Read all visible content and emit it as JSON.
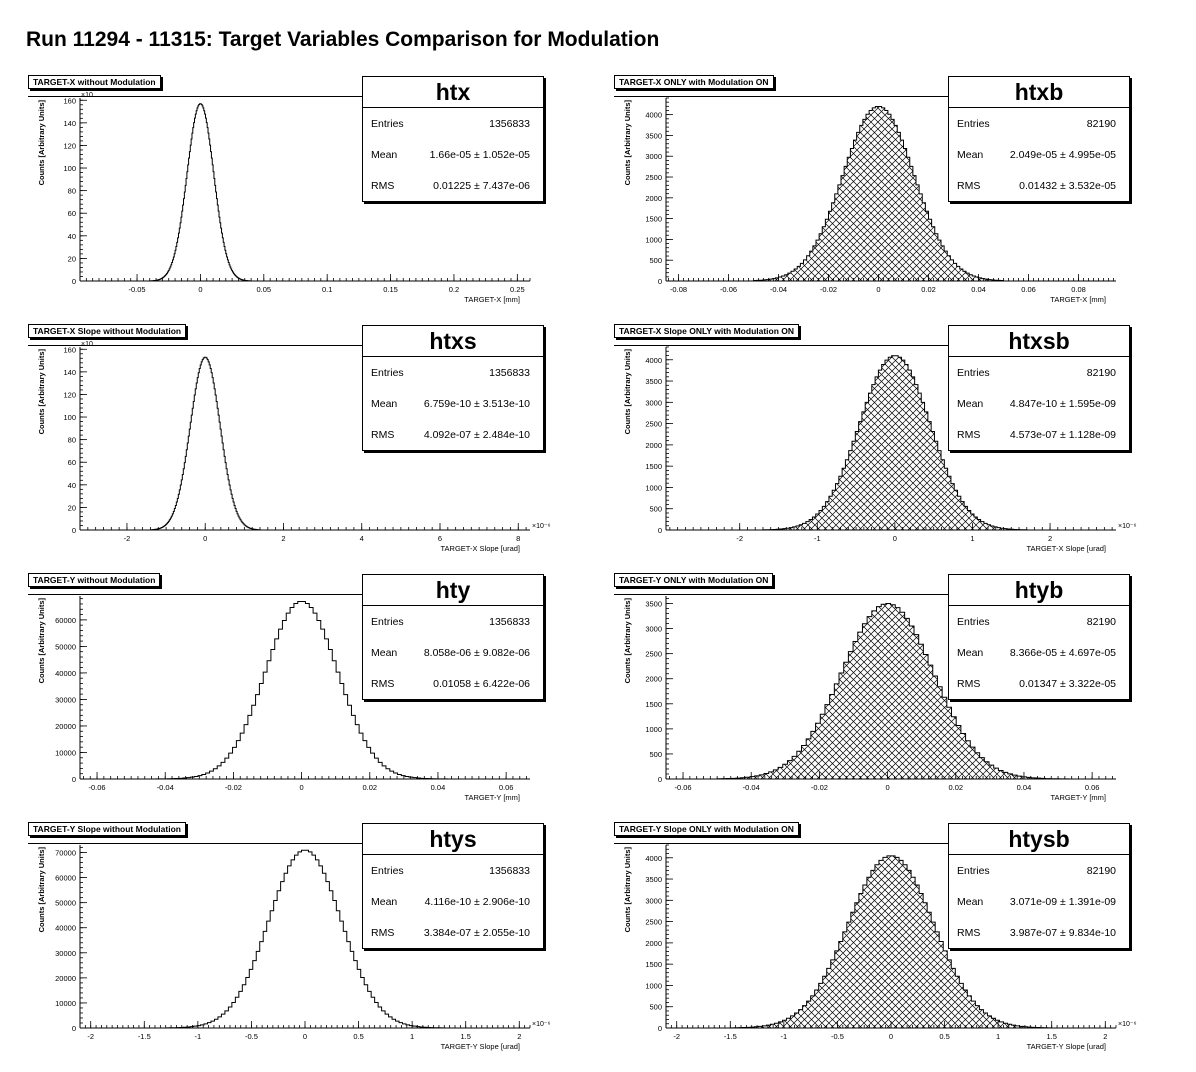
{
  "page": {
    "title": "Run 11294 - 11315: Target Variables Comparison for Modulation"
  },
  "stats_labels": {
    "entries": "Entries",
    "mean": "Mean",
    "rms": "RMS"
  },
  "colors": {
    "axis": "#000000",
    "histogram_line": "#000000",
    "hatch_fill": "#000000",
    "background": "#ffffff"
  },
  "chart_data": [
    {
      "type": "histogram",
      "name": "htx",
      "title": "TARGET-X without Modulation",
      "xlabel": "TARGET-X [mm]",
      "ylabel": "Counts [Arbitrary Units]",
      "xlim": [
        -0.095,
        0.26
      ],
      "ylim": [
        0,
        162000
      ],
      "y_exponent_label": "×10",
      "x_ticks": [
        -0.05,
        0,
        0.05,
        0.1,
        0.15,
        0.2,
        0.25
      ],
      "x_tick_labels": [
        "-0.05",
        "0",
        "0.05",
        "0.1",
        "0.15",
        "0.2",
        "0.25"
      ],
      "y_ticks": [
        0,
        20000,
        40000,
        60000,
        80000,
        100000,
        120000,
        140000,
        160000
      ],
      "y_tick_labels": [
        "0",
        "20",
        "40",
        "60",
        "80",
        "100",
        "120",
        "140",
        "160"
      ],
      "x_multiplier_label": "",
      "dist": {
        "mean": 0,
        "sigma": 0.0105,
        "peak": 157000,
        "bins": 120,
        "range": [
          -0.04,
          0.04
        ]
      },
      "filled": false,
      "stats": {
        "entries": "1356833",
        "mean": "1.66e-05 ± 1.052e-05",
        "rms": "0.01225 ± 7.437e-06"
      }
    },
    {
      "type": "histogram",
      "name": "htxb",
      "title": "TARGET-X ONLY with Modulation ON",
      "xlabel": "TARGET-X [mm]",
      "ylabel": "Counts [Arbitrary Units]",
      "xlim": [
        -0.085,
        0.095
      ],
      "ylim": [
        0,
        4400
      ],
      "y_exponent_label": "",
      "x_ticks": [
        -0.08,
        -0.06,
        -0.04,
        -0.02,
        0,
        0.02,
        0.04,
        0.06,
        0.08
      ],
      "x_tick_labels": [
        "-0.08",
        "-0.06",
        "-0.04",
        "-0.02",
        "0",
        "0.02",
        "0.04",
        "0.06",
        "0.08"
      ],
      "y_ticks": [
        0,
        500,
        1000,
        1500,
        2000,
        2500,
        3000,
        3500,
        4000
      ],
      "y_tick_labels": [
        "0",
        "500",
        "1000",
        "1500",
        "2000",
        "2500",
        "3000",
        "3500",
        "4000"
      ],
      "x_multiplier_label": "",
      "dist": {
        "mean": 0,
        "sigma": 0.0143,
        "peak": 4200,
        "bins": 80,
        "range": [
          -0.05,
          0.05
        ]
      },
      "filled": true,
      "stats": {
        "entries": "82190",
        "mean": "2.049e-05 ± 4.995e-05",
        "rms": "0.01432 ± 3.532e-05"
      }
    },
    {
      "type": "histogram",
      "name": "htxs",
      "title": "TARGET-X Slope without Modulation",
      "xlabel": "TARGET-X Slope [urad]",
      "ylabel": "Counts [Arbitrary Units]",
      "xlim": [
        -3.2,
        8.3
      ],
      "ylim": [
        0,
        162000
      ],
      "y_exponent_label": "×10",
      "x_ticks": [
        -2,
        0,
        2,
        4,
        6,
        8
      ],
      "x_tick_labels": [
        "-2",
        "0",
        "2",
        "4",
        "6",
        "8"
      ],
      "y_ticks": [
        0,
        20000,
        40000,
        60000,
        80000,
        100000,
        120000,
        140000,
        160000
      ],
      "y_tick_labels": [
        "0",
        "20",
        "40",
        "60",
        "80",
        "100",
        "120",
        "140",
        "160"
      ],
      "x_multiplier_label": "×10⁻⁶",
      "dist": {
        "mean": 0,
        "sigma": 0.38,
        "peak": 153000,
        "bins": 110,
        "range": [
          -1.4,
          1.4
        ]
      },
      "filled": false,
      "stats": {
        "entries": "1356833",
        "mean": "6.759e-10 ± 3.513e-10",
        "rms": "4.092e-07 ± 2.484e-10"
      }
    },
    {
      "type": "histogram",
      "name": "htxsb",
      "title": "TARGET-X Slope ONLY with Modulation ON",
      "xlabel": "TARGET-X Slope [urad]",
      "ylabel": "Counts [Arbitrary Units]",
      "xlim": [
        -2.95,
        2.85
      ],
      "ylim": [
        0,
        4300
      ],
      "y_exponent_label": "",
      "x_ticks": [
        -2,
        -1,
        0,
        1,
        2
      ],
      "x_tick_labels": [
        "-2",
        "-1",
        "0",
        "1",
        "2"
      ],
      "y_ticks": [
        0,
        500,
        1000,
        1500,
        2000,
        2500,
        3000,
        3500,
        4000
      ],
      "y_tick_labels": [
        "0",
        "500",
        "1000",
        "1500",
        "2000",
        "2500",
        "3000",
        "3500",
        "4000"
      ],
      "x_multiplier_label": "×10⁻⁶",
      "dist": {
        "mean": 0,
        "sigma": 0.457,
        "peak": 4100,
        "bins": 80,
        "range": [
          -1.7,
          1.7
        ]
      },
      "filled": true,
      "stats": {
        "entries": "82190",
        "mean": "4.847e-10 ± 1.595e-09",
        "rms": "4.573e-07 ± 1.128e-09"
      }
    },
    {
      "type": "histogram",
      "name": "hty",
      "title": "TARGET-Y without Modulation",
      "xlabel": "TARGET-Y [mm]",
      "ylabel": "Counts [Arbitrary Units]",
      "xlim": [
        -0.065,
        0.067
      ],
      "ylim": [
        0,
        69000
      ],
      "y_exponent_label": "",
      "x_ticks": [
        -0.06,
        -0.04,
        -0.02,
        0,
        0.02,
        0.04,
        0.06
      ],
      "x_tick_labels": [
        "-0.06",
        "-0.04",
        "-0.02",
        "0",
        "0.02",
        "0.04",
        "0.06"
      ],
      "y_ticks": [
        0,
        10000,
        20000,
        30000,
        40000,
        50000,
        60000
      ],
      "y_tick_labels": [
        "0",
        "10000",
        "20000",
        "30000",
        "40000",
        "50000",
        "60000"
      ],
      "x_multiplier_label": "",
      "dist": {
        "mean": 0,
        "sigma": 0.0106,
        "peak": 67000,
        "bins": 80,
        "range": [
          -0.045,
          0.045
        ]
      },
      "filled": false,
      "stats": {
        "entries": "1356833",
        "mean": "8.058e-06 ± 9.082e-06",
        "rms": "0.01058 ± 6.422e-06"
      }
    },
    {
      "type": "histogram",
      "name": "htyb",
      "title": "TARGET-Y ONLY with Modulation ON",
      "xlabel": "TARGET-Y [mm]",
      "ylabel": "Counts [Arbitrary Units]",
      "xlim": [
        -0.065,
        0.067
      ],
      "ylim": [
        0,
        3650
      ],
      "y_exponent_label": "",
      "x_ticks": [
        -0.06,
        -0.04,
        -0.02,
        0,
        0.02,
        0.04,
        0.06
      ],
      "x_tick_labels": [
        "-0.06",
        "-0.04",
        "-0.02",
        "0",
        "0.02",
        "0.04",
        "0.06"
      ],
      "y_ticks": [
        0,
        500,
        1000,
        1500,
        2000,
        2500,
        3000,
        3500
      ],
      "y_tick_labels": [
        "0",
        "500",
        "1000",
        "1500",
        "2000",
        "2500",
        "3000",
        "3500"
      ],
      "x_multiplier_label": "",
      "dist": {
        "mean": 0,
        "sigma": 0.0135,
        "peak": 3500,
        "bins": 80,
        "range": [
          -0.05,
          0.06
        ]
      },
      "filled": true,
      "stats": {
        "entries": "82190",
        "mean": "8.366e-05 ± 4.697e-05",
        "rms": "0.01347 ± 3.322e-05"
      }
    },
    {
      "type": "histogram",
      "name": "htys",
      "title": "TARGET-Y Slope without Modulation",
      "xlabel": "TARGET-Y Slope [urad]",
      "ylabel": "Counts [Arbitrary Units]",
      "xlim": [
        -2.1,
        2.1
      ],
      "ylim": [
        0,
        73000
      ],
      "y_exponent_label": "",
      "x_ticks": [
        -2,
        -1.5,
        -1,
        -0.5,
        0,
        0.5,
        1,
        1.5,
        2
      ],
      "x_tick_labels": [
        "-2",
        "-1.5",
        "-1",
        "-0.5",
        "0",
        "0.5",
        "1",
        "1.5",
        "2"
      ],
      "y_ticks": [
        0,
        10000,
        20000,
        30000,
        40000,
        50000,
        60000,
        70000
      ],
      "y_tick_labels": [
        "0",
        "10000",
        "20000",
        "30000",
        "40000",
        "50000",
        "60000",
        "70000"
      ],
      "x_multiplier_label": "×10⁻⁶",
      "dist": {
        "mean": 0,
        "sigma": 0.338,
        "peak": 71000,
        "bins": 80,
        "range": [
          -1.3,
          1.3
        ]
      },
      "filled": false,
      "stats": {
        "entries": "1356833",
        "mean": "4.116e-10 ± 2.906e-10",
        "rms": "3.384e-07 ± 2.055e-10"
      }
    },
    {
      "type": "histogram",
      "name": "htysb",
      "title": "TARGET-Y Slope ONLY with Modulation ON",
      "xlabel": "TARGET-Y Slope [urad]",
      "ylabel": "Counts [Arbitrary Units]",
      "xlim": [
        -2.1,
        2.1
      ],
      "ylim": [
        0,
        4300
      ],
      "y_exponent_label": "",
      "x_ticks": [
        -2,
        -1.5,
        -1,
        -0.5,
        0,
        0.5,
        1,
        1.5,
        2
      ],
      "x_tick_labels": [
        "-2",
        "-1.5",
        "-1",
        "-0.5",
        "0",
        "0.5",
        "1",
        "1.5",
        "2"
      ],
      "y_ticks": [
        0,
        500,
        1000,
        1500,
        2000,
        2500,
        3000,
        3500,
        4000
      ],
      "y_tick_labels": [
        "0",
        "500",
        "1000",
        "1500",
        "2000",
        "2500",
        "3000",
        "3500",
        "4000"
      ],
      "x_multiplier_label": "×10⁻⁶",
      "dist": {
        "mean": 0,
        "sigma": 0.399,
        "peak": 4050,
        "bins": 80,
        "range": [
          -1.5,
          1.5
        ]
      },
      "filled": true,
      "stats": {
        "entries": "82190",
        "mean": "3.071e-09 ± 1.391e-09",
        "rms": "3.987e-07 ± 9.834e-10"
      }
    }
  ]
}
